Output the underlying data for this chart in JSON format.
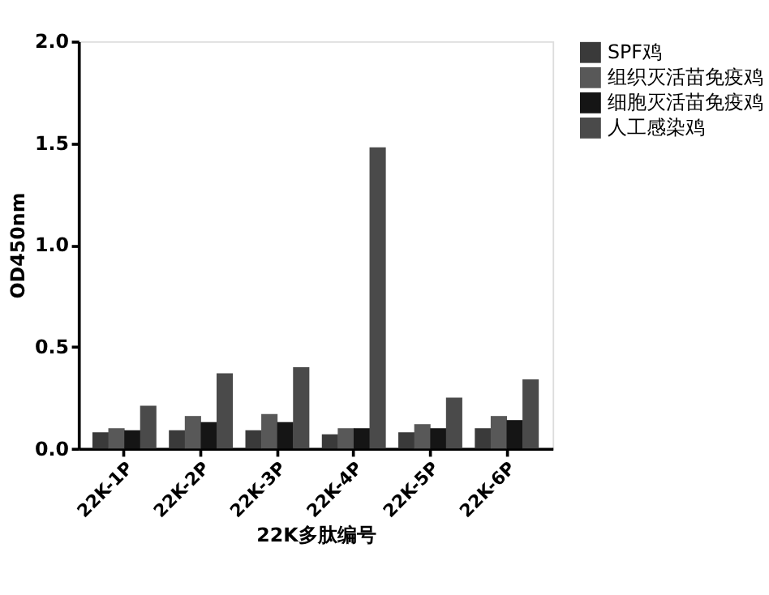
{
  "chart_data": {
    "type": "bar",
    "xlabel": "22K多肽编号",
    "ylabel": "OD450nm",
    "categories": [
      "22K-1P",
      "22K-2P",
      "22K-3P",
      "22K-4P",
      "22K-5P",
      "22K-6P"
    ],
    "series": [
      {
        "name": "SPF鸡",
        "color": "#3a3a3a",
        "values": [
          0.08,
          0.09,
          0.09,
          0.07,
          0.08,
          0.1
        ]
      },
      {
        "name": "组织灭活苗免疫鸡",
        "color": "#585858",
        "values": [
          0.1,
          0.16,
          0.17,
          0.1,
          0.12,
          0.16
        ]
      },
      {
        "name": "细胞灭活苗免疫鸡",
        "color": "#151515",
        "values": [
          0.09,
          0.13,
          0.13,
          0.1,
          0.1,
          0.14
        ]
      },
      {
        "name": "人工感染鸡",
        "color": "#4a4a4a",
        "values": [
          0.21,
          0.37,
          0.4,
          1.48,
          0.25,
          0.34
        ]
      }
    ],
    "ylim": [
      0,
      2.0
    ],
    "yticks": [
      {
        "value": 0,
        "label": "0.0"
      },
      0.5,
      {
        "value": 1,
        "label": "1.0"
      },
      1.5,
      {
        "value": 2,
        "label": "2.0"
      }
    ],
    "grid": false,
    "legend": "top right"
  }
}
